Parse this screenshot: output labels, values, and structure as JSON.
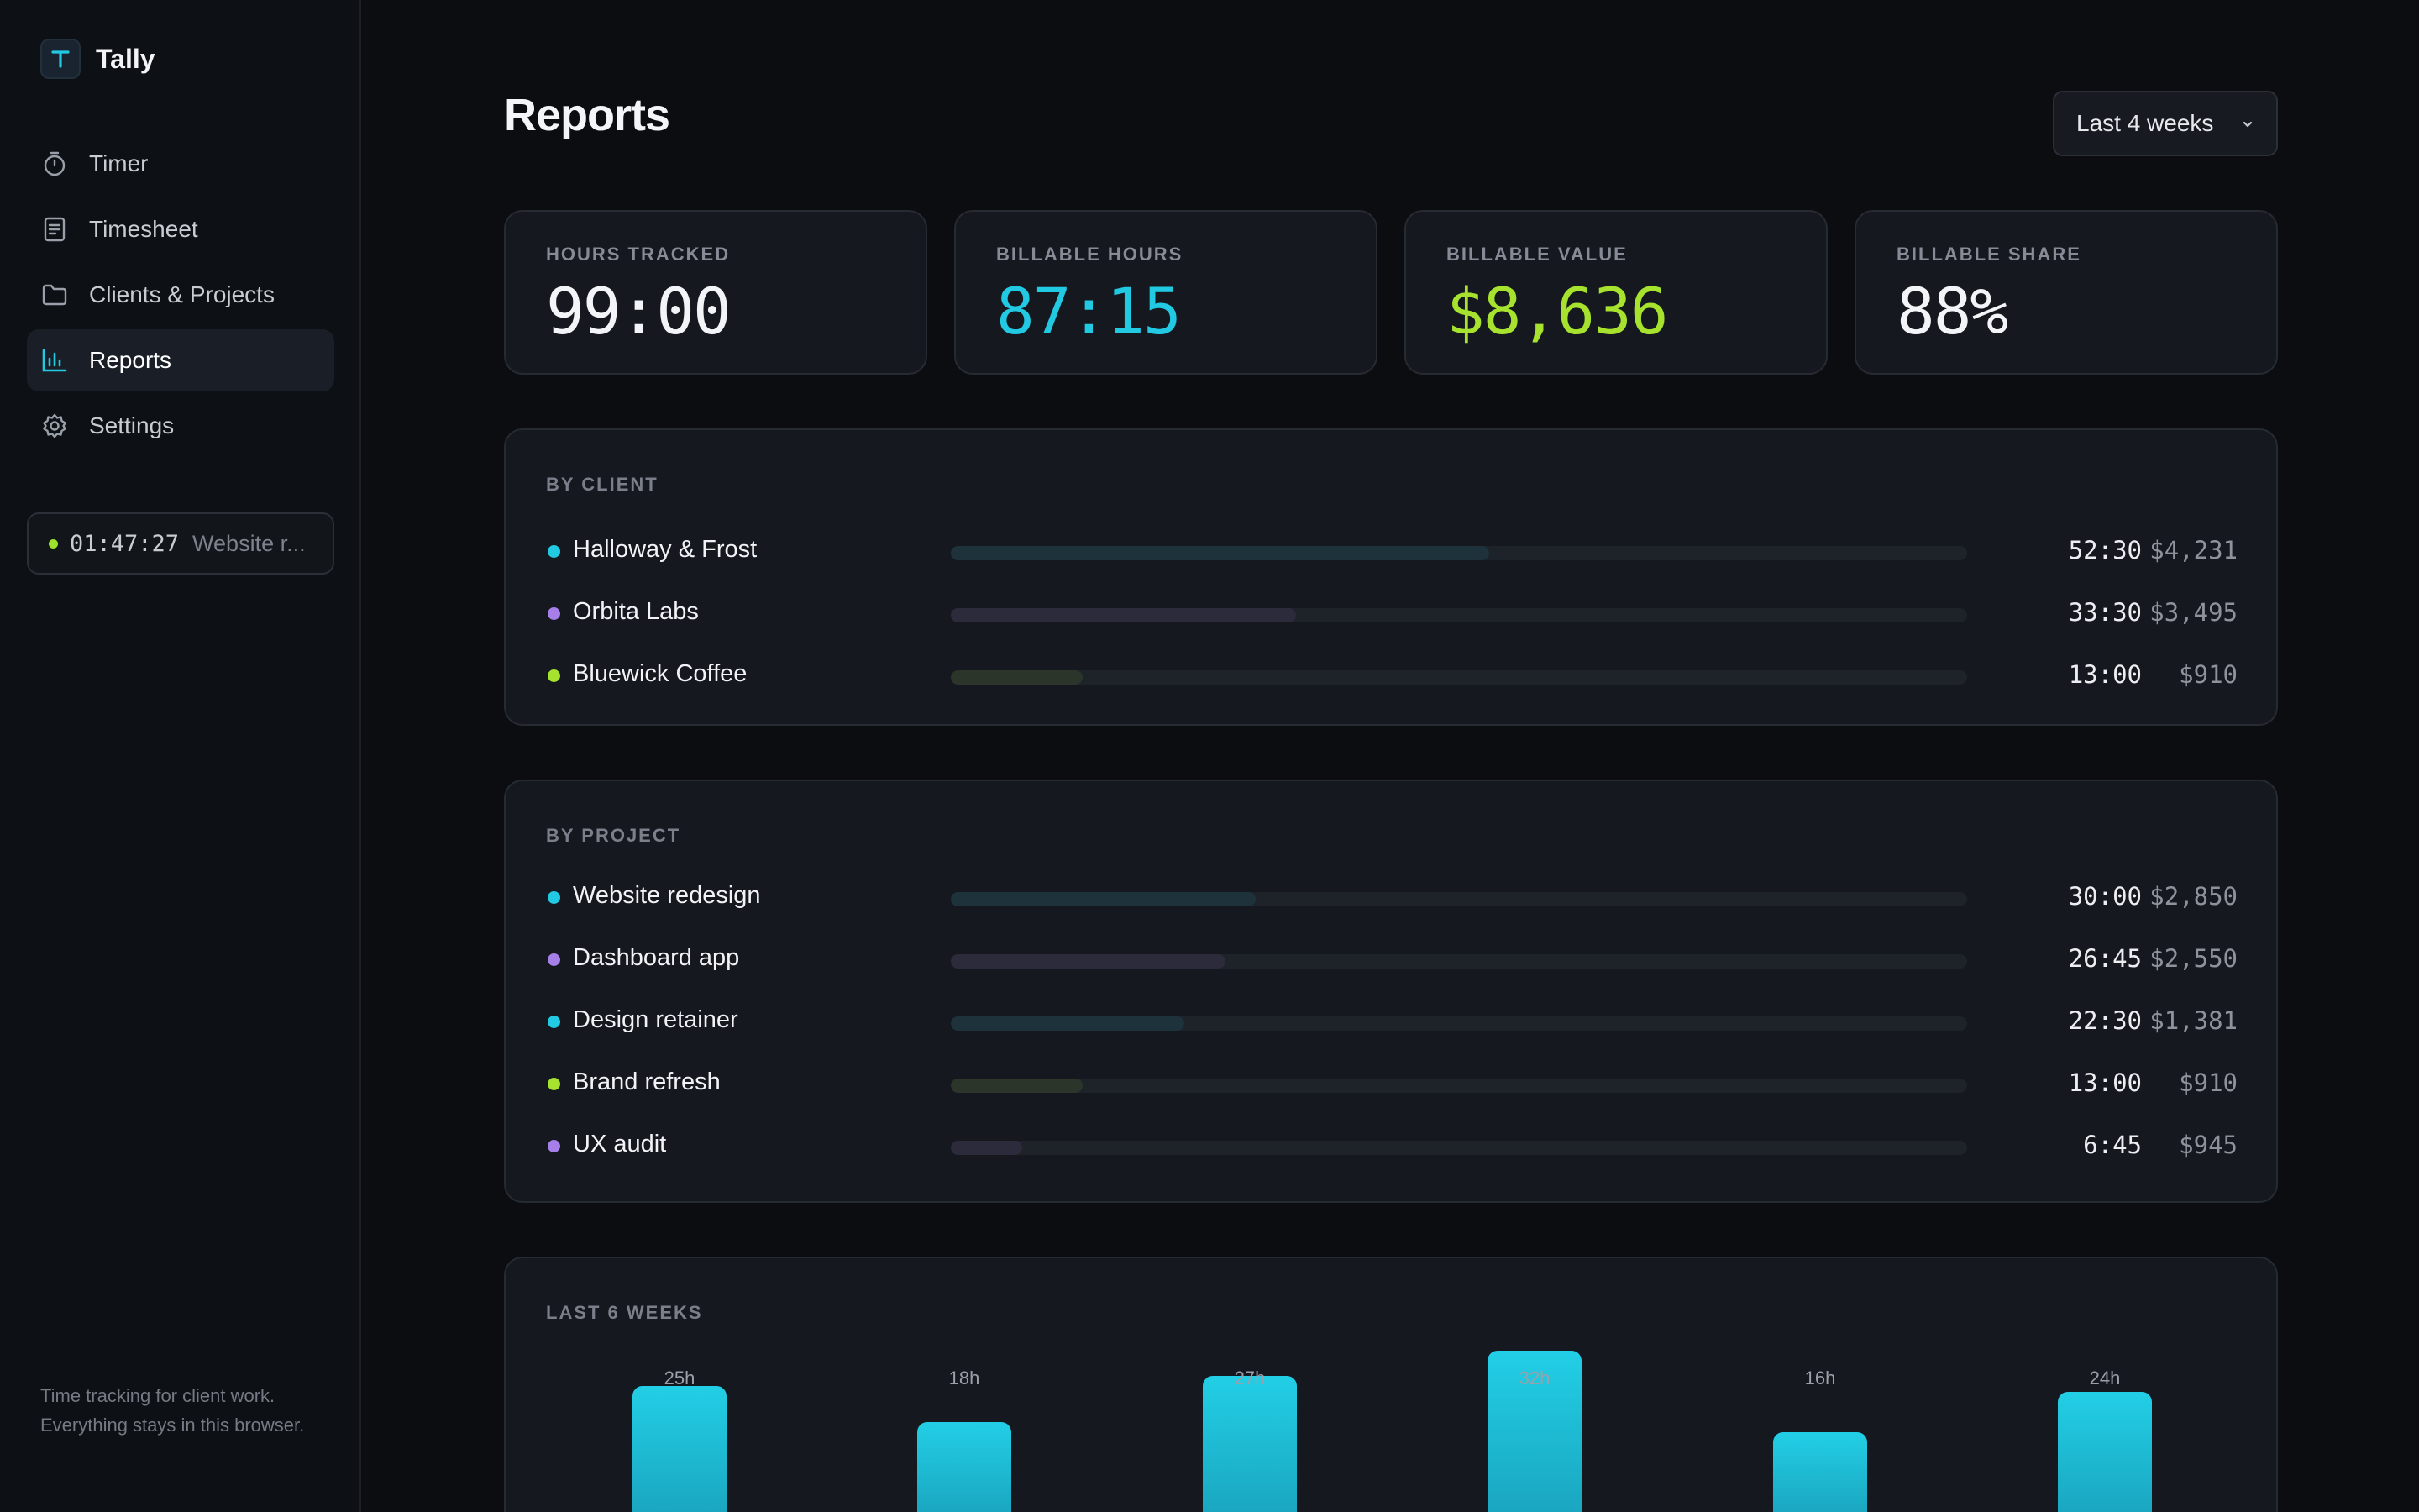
{
  "app": {
    "name": "Tally",
    "logo_letter": "T"
  },
  "sidebar": {
    "items": [
      {
        "label": "Timer",
        "icon": "stopwatch-icon",
        "active": false
      },
      {
        "label": "Timesheet",
        "icon": "document-icon",
        "active": false
      },
      {
        "label": "Clients & Projects",
        "icon": "folder-icon",
        "active": false
      },
      {
        "label": "Reports",
        "icon": "bar-chart-icon",
        "active": true
      },
      {
        "label": "Settings",
        "icon": "gear-icon",
        "active": false
      }
    ],
    "running_timer": {
      "time": "01:47:27",
      "project": "Website r..."
    },
    "tagline": "Time tracking for client work. Everything stays in this browser."
  },
  "header": {
    "title": "Reports",
    "range_label": "Last 4 weeks"
  },
  "stats": [
    {
      "label": "HOURS TRACKED",
      "value": "99:00",
      "color": "#f2f4f7"
    },
    {
      "label": "BILLABLE HOURS",
      "value": "87:15",
      "color": "#22c9e3"
    },
    {
      "label": "BILLABLE VALUE",
      "value": "$8,636",
      "color": "#a6e22e"
    },
    {
      "label": "BILLABLE SHARE",
      "value": "88%",
      "color": "#f2f4f7"
    }
  ],
  "by_client": {
    "label": "BY CLIENT",
    "rows": [
      {
        "name": "Halloway & Frost",
        "hours": "52:30",
        "amount": "$4,231",
        "color": "#22c9e3",
        "share": 0.53
      },
      {
        "name": "Orbita Labs",
        "hours": "33:30",
        "amount": "$3,495",
        "color": "#a77fe8",
        "share": 0.34
      },
      {
        "name": "Bluewick Coffee",
        "hours": "13:00",
        "amount": "$910",
        "color": "#a6e22e",
        "share": 0.13
      }
    ]
  },
  "by_project": {
    "label": "BY PROJECT",
    "rows": [
      {
        "name": "Website redesign",
        "hours": "30:00",
        "amount": "$2,850",
        "color": "#22c9e3",
        "share": 0.3
      },
      {
        "name": "Dashboard app",
        "hours": "26:45",
        "amount": "$2,550",
        "color": "#a77fe8",
        "share": 0.27
      },
      {
        "name": "Design retainer",
        "hours": "22:30",
        "amount": "$1,381",
        "color": "#22c9e3",
        "share": 0.23
      },
      {
        "name": "Brand refresh",
        "hours": "13:00",
        "amount": "$910",
        "color": "#a6e22e",
        "share": 0.13
      },
      {
        "name": "UX audit",
        "hours": "6:45",
        "amount": "$945",
        "color": "#a77fe8",
        "share": 0.07
      }
    ]
  },
  "chart_data": {
    "type": "bar",
    "title": "LAST 6 WEEKS",
    "categories": [
      "",
      "",
      "",
      "",
      "",
      ""
    ],
    "values": [
      25,
      18,
      27,
      32,
      16,
      24
    ],
    "data_labels": [
      "25h",
      "18h",
      "27h",
      "32h",
      "16h",
      "24h"
    ],
    "ylim": [
      0,
      32
    ],
    "color": "#22c9e3"
  }
}
